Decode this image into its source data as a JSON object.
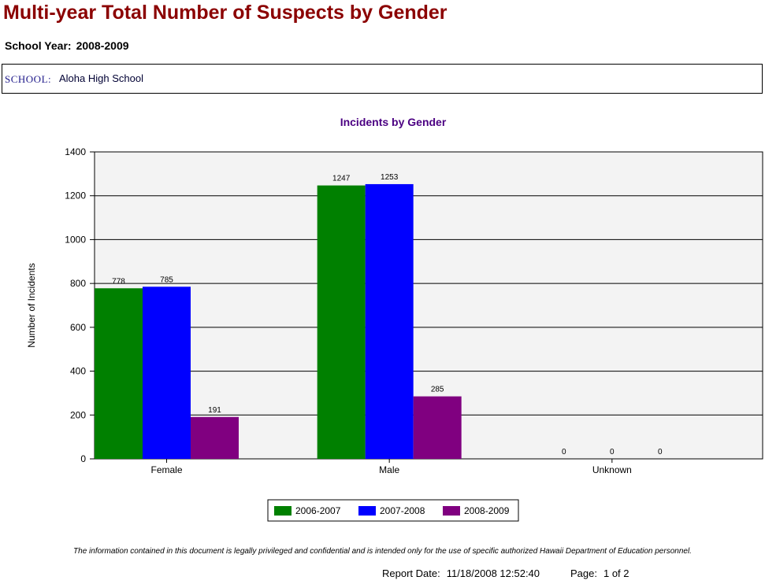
{
  "report": {
    "title": "Multi-year Total Number of Suspects by Gender",
    "school_year_label": "School Year:",
    "school_year": "2008-2009",
    "school_label": "SCHOOL:",
    "school_name": "Aloha High School"
  },
  "chart_data": {
    "type": "bar",
    "title": "Incidents by Gender",
    "xlabel": "",
    "ylabel": "Number of Incidents",
    "categories": [
      "Female",
      "Male",
      "Unknown"
    ],
    "series": [
      {
        "name": "2006-2007",
        "values": [
          778,
          1247,
          0
        ],
        "color": "#008000"
      },
      {
        "name": "2007-2008",
        "values": [
          785,
          1253,
          0
        ],
        "color": "#0000ff"
      },
      {
        "name": "2008-2009",
        "values": [
          191,
          285,
          0
        ],
        "color": "#800080"
      }
    ],
    "ylim": [
      0,
      1400
    ],
    "yticks": [
      0,
      200,
      400,
      600,
      800,
      1000,
      1200,
      1400
    ],
    "grid": true,
    "legend_position": "bottom",
    "colors": {
      "title": "#4b0082",
      "plot_background": "#f3f3f3"
    }
  },
  "footer": {
    "disclaimer": "The information contained in this document is legally privileged and confidential and is intended only for the use of specific authorized Hawaii Department of Education personnel.",
    "report_date_label": "Report Date:",
    "report_date": "11/18/2008 12:52:40",
    "page_label": "Page:",
    "page_value": "1 of 2"
  }
}
